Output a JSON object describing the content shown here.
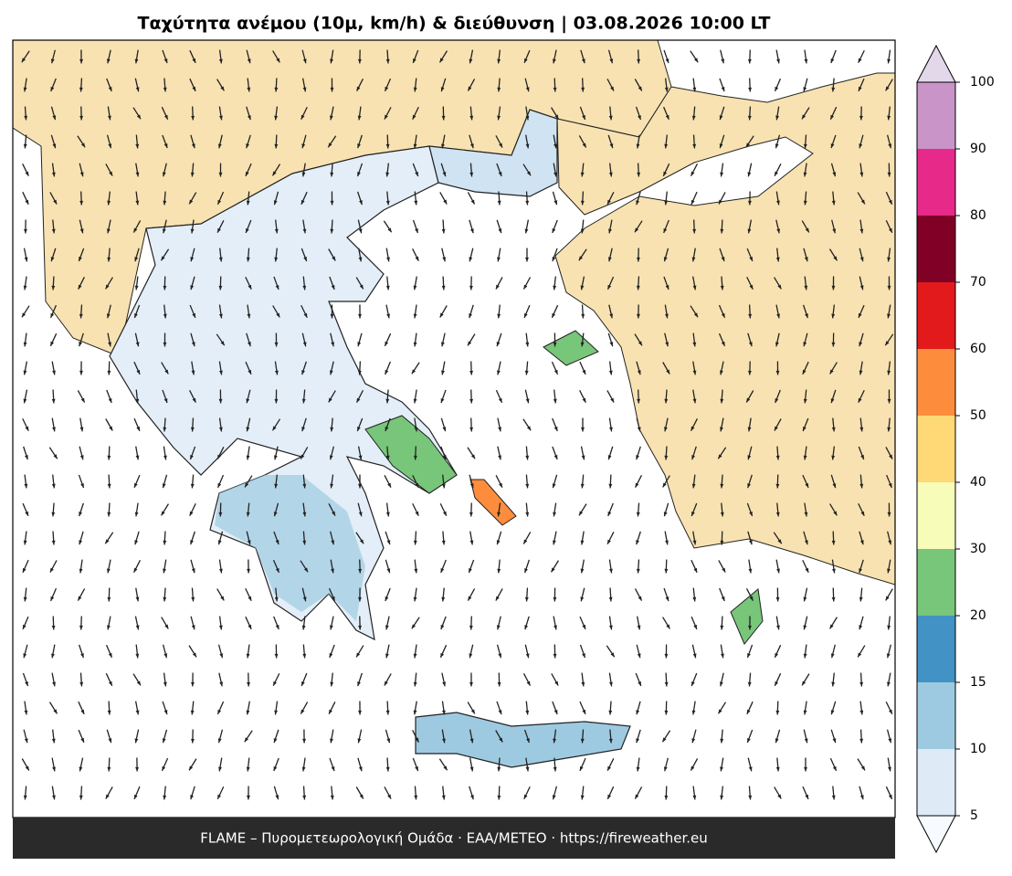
{
  "map": {
    "title": "Ταχύτητα ανέμου (10μ, km/h) & διεύθυνση  |  03.08.2026 10:00 LT",
    "colorbar": {
      "ticks": [
        5,
        10,
        15,
        20,
        30,
        40,
        50,
        60,
        70,
        80,
        90,
        100
      ],
      "colors": [
        "#deebf7",
        "#9ecae1",
        "#4292c6",
        "#78c679",
        "#f7fcb9",
        "#fed976",
        "#fd8d3c",
        "#e31a1c",
        "#800026",
        "#e7298a",
        "#c994c7"
      ],
      "under_color": "#f7fbff",
      "over_color": "#e2d8ea"
    },
    "footer": "FLAME – Πυρομετεωρολογική Ομάδα · ΕΑΑ/METEO · https://fireweather.eu"
  }
}
